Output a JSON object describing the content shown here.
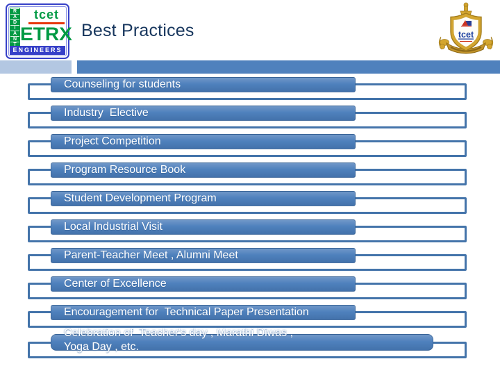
{
  "slide": {
    "title": "Best Practices",
    "logo_left": {
      "vertical_text": "RADIANT",
      "brand_small": "tcet",
      "brand_large": "ETRX",
      "brand_bottom": "ENGINEERS"
    },
    "logo_right": {
      "text": "tcet"
    },
    "items": [
      {
        "label": "Counseling for students"
      },
      {
        "label": "Industry  Elective"
      },
      {
        "label": "Project Competition"
      },
      {
        "label": "Program Resource Book"
      },
      {
        "label": "Student Development Program"
      },
      {
        "label": "Local Industrial Visit"
      },
      {
        "label": "Parent-Teacher Meet , Alumni Meet"
      },
      {
        "label": "Center of Excellence"
      },
      {
        "label": "Encouragement for  Technical Paper Presentation"
      },
      {
        "label": "Celebration of  Teacher's day , Marathi Diwas ,\nYoga Day , etc."
      }
    ],
    "colors": {
      "accent": "#4f81bd",
      "accent_dark": "#4474aa",
      "accent_light": "#b3c7e2",
      "title_color": "#17365d",
      "logo_green": "#019a44",
      "logo_blue": "#3640c8",
      "logo_red": "#e8380d",
      "crest_gold": "#d4a62f",
      "crest_gold_dark": "#a37d1d"
    }
  }
}
